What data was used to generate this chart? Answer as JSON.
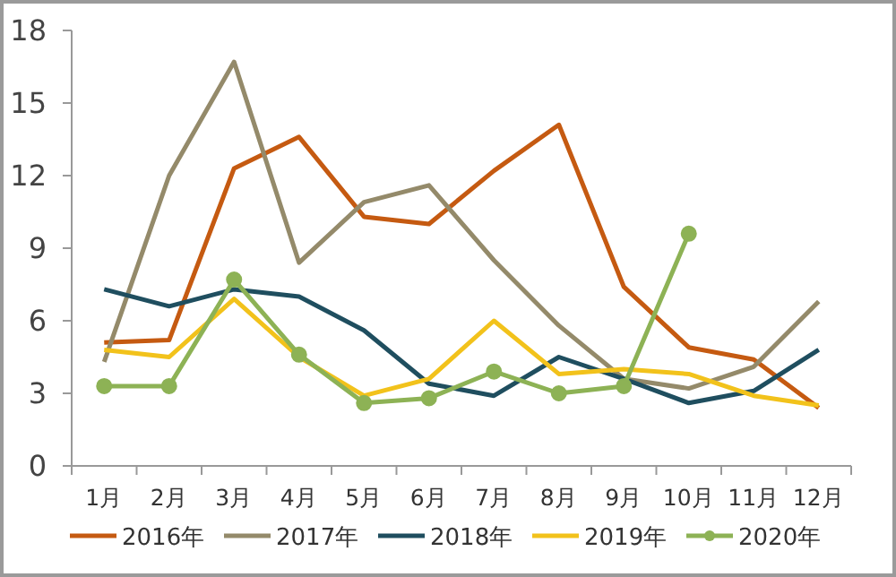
{
  "chart_data": {
    "type": "line",
    "categories": [
      "1月",
      "2月",
      "3月",
      "4月",
      "5月",
      "6月",
      "7月",
      "8月",
      "9月",
      "10月",
      "11月",
      "12月"
    ],
    "series": [
      {
        "name": "2016年",
        "color": "#c55a11",
        "values": [
          5.1,
          5.2,
          12.3,
          13.6,
          10.3,
          10.0,
          12.2,
          14.1,
          7.4,
          4.9,
          4.4,
          2.4
        ]
      },
      {
        "name": "2017年",
        "color": "#948a6a",
        "values": [
          4.3,
          12.0,
          16.7,
          8.4,
          10.9,
          11.6,
          8.5,
          5.8,
          3.6,
          3.2,
          4.1,
          6.8
        ]
      },
      {
        "name": "2018年",
        "color": "#1f4e5f",
        "values": [
          7.3,
          6.6,
          7.3,
          7.0,
          5.6,
          3.4,
          2.9,
          4.5,
          3.6,
          2.6,
          3.1,
          4.8
        ]
      },
      {
        "name": "2019年",
        "color": "#f2c21b",
        "values": [
          4.8,
          4.5,
          6.9,
          4.5,
          2.9,
          3.6,
          6.0,
          3.8,
          4.0,
          3.8,
          2.9,
          2.5
        ]
      },
      {
        "name": "2020年",
        "color": "#8db255",
        "marker": "circle",
        "values": [
          3.3,
          3.3,
          7.7,
          4.6,
          2.6,
          2.8,
          3.9,
          3.0,
          3.3,
          9.6,
          null,
          null
        ]
      }
    ],
    "ylim": [
      0,
      18
    ],
    "yticks": [
      0,
      3,
      6,
      9,
      12,
      15,
      18
    ],
    "legend": "bottom",
    "grid": false
  }
}
